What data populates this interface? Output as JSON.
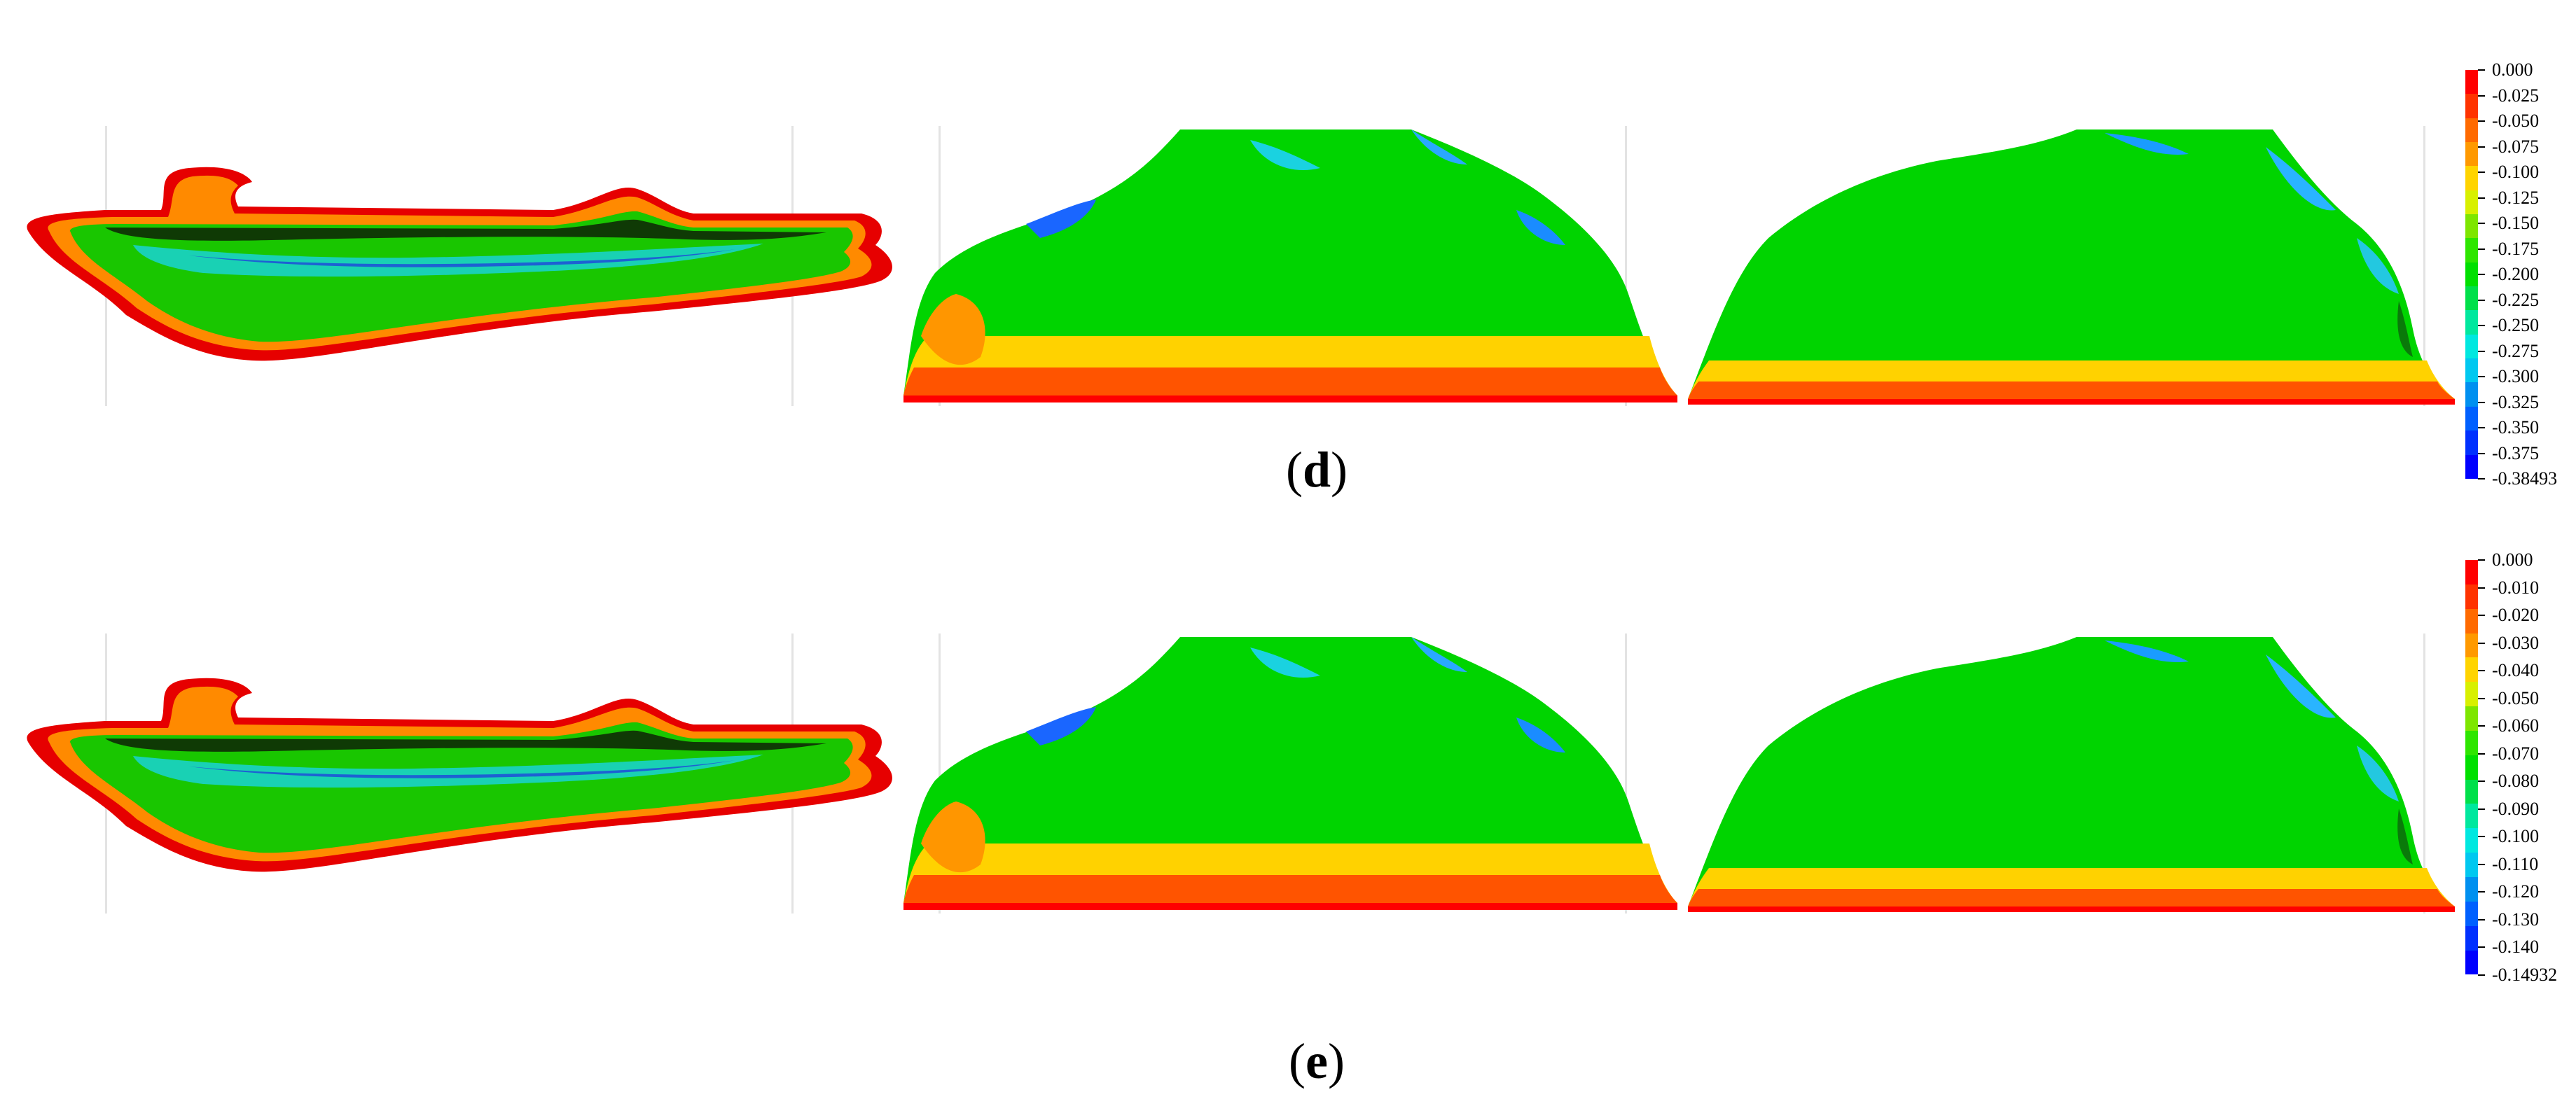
{
  "panels": [
    {
      "caption_letter": "d",
      "legend": [
        "0.000",
        "-0.025",
        "-0.050",
        "-0.075",
        "-0.100",
        "-0.125",
        "-0.150",
        "-0.175",
        "-0.200",
        "-0.225",
        "-0.250",
        "-0.275",
        "-0.300",
        "-0.325",
        "-0.350",
        "-0.375",
        "-0.38493"
      ]
    },
    {
      "caption_letter": "e",
      "legend": [
        "0.000",
        "-0.010",
        "-0.020",
        "-0.030",
        "-0.040",
        "-0.050",
        "-0.060",
        "-0.070",
        "-0.080",
        "-0.090",
        "-0.100",
        "-0.110",
        "-0.120",
        "-0.130",
        "-0.140",
        "-0.14932"
      ]
    }
  ],
  "colormap": [
    "#ff0000",
    "#ff3300",
    "#ff6a00",
    "#ff9900",
    "#ffd400",
    "#d8f000",
    "#7ee600",
    "#2ee600",
    "#00e000",
    "#00e04a",
    "#00e89e",
    "#00e8e0",
    "#00c8f0",
    "#0090f0",
    "#0060ff",
    "#0030ff",
    "#0000ff"
  ]
}
